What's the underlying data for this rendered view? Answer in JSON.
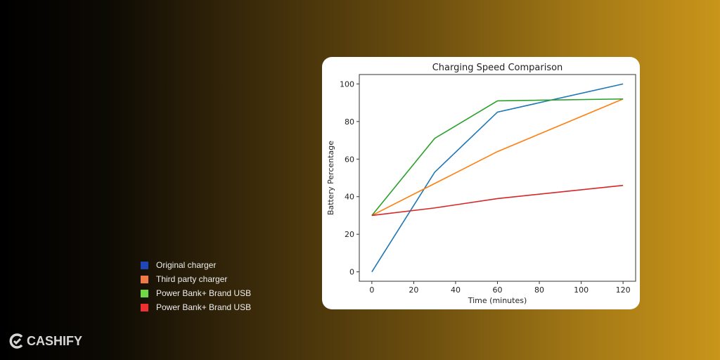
{
  "chart_data": {
    "type": "line",
    "title": "Charging Speed Comparison",
    "xlabel": "Time (minutes)",
    "ylabel": "Battery Percentage",
    "x": [
      0,
      30,
      60,
      120
    ],
    "xticks": [
      0,
      20,
      40,
      60,
      80,
      100,
      120
    ],
    "yticks": [
      0,
      20,
      40,
      60,
      80,
      100
    ],
    "xlim": [
      -6,
      126
    ],
    "ylim": [
      -5,
      105
    ],
    "grid": false,
    "series": [
      {
        "values": [
          0,
          53,
          85,
          100
        ],
        "color": "#1f77b4"
      },
      {
        "values": [
          30,
          47,
          64,
          92
        ],
        "color": "#ff7f0e"
      },
      {
        "values": [
          30,
          71,
          91,
          92
        ],
        "color": "#2ca02c"
      },
      {
        "values": [
          30,
          34,
          39,
          46
        ],
        "color": "#d62728"
      }
    ]
  },
  "legend": [
    {
      "label": "Original charger",
      "color": "#1f47b8"
    },
    {
      "label": "Third party charger",
      "color": "#ee7a45"
    },
    {
      "label": "Power Bank+ Brand USB",
      "color": "#6fd844"
    },
    {
      "label": "Power Bank+ Brand USB",
      "color": "#f03030"
    }
  ],
  "logo": {
    "text": "CASHIFY"
  }
}
